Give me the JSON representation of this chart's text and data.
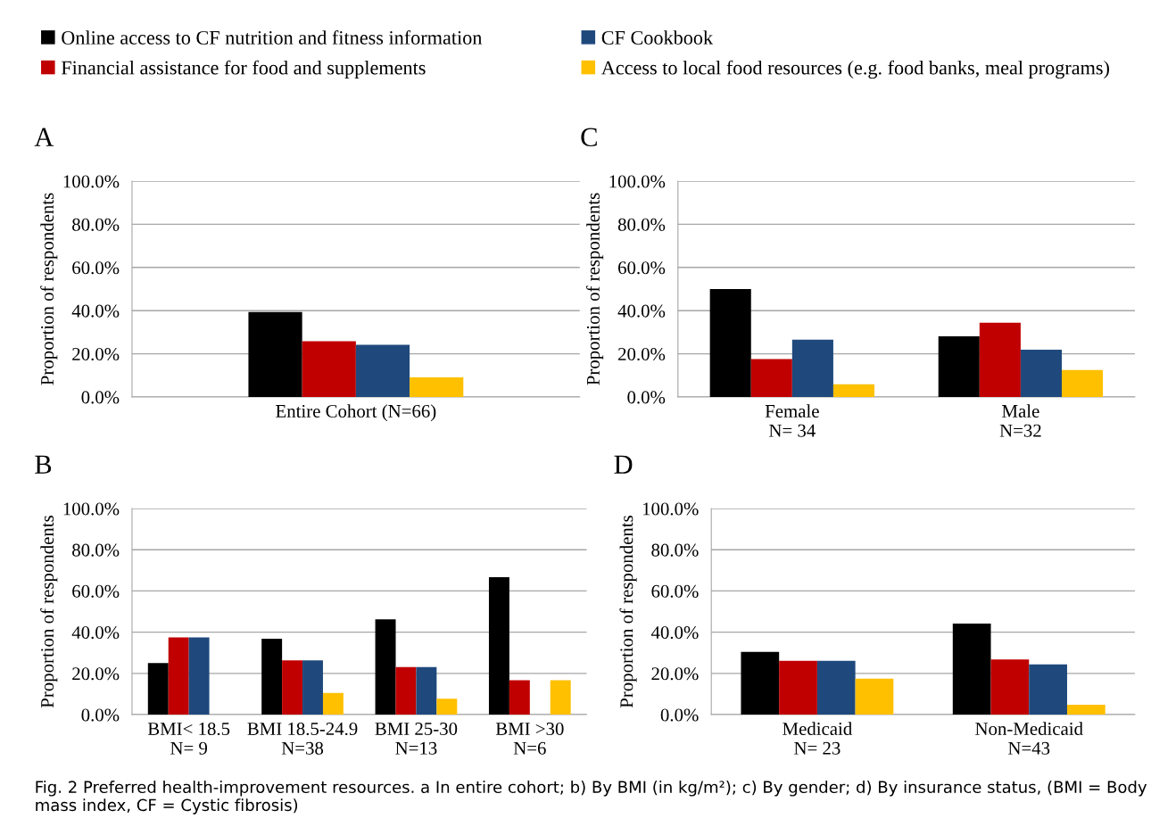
{
  "chart_data": [
    {
      "type": "bar",
      "title": "A",
      "ylabel": "Proportion of respondents",
      "categories": [
        "Entire Cohort (N=66)"
      ],
      "legend": "top",
      "series": [
        {
          "name": "Online access to CF nutrition and fitness information",
          "color": "#000000",
          "values": [
            39.4
          ]
        },
        {
          "name": "Financial assistance for food and supplements",
          "color": "#c00000",
          "values": [
            25.8
          ]
        },
        {
          "name": "CF Cookbook",
          "color": "#1f497d",
          "values": [
            24.2
          ]
        },
        {
          "name": "Access to local food resources (e.g. food banks, meal programs)",
          "color": "#ffc000",
          "values": [
            9.1
          ]
        }
      ],
      "ylim": [
        0,
        100
      ],
      "yticks": [
        {
          "value": 0,
          "label": "0.0%"
        },
        {
          "value": 20,
          "label": "20.0%"
        },
        {
          "value": 40,
          "label": "40.0%"
        },
        {
          "value": 60,
          "label": "60.0%"
        },
        {
          "value": 80,
          "label": "80.0%"
        },
        {
          "value": 100,
          "label": "100.0%"
        }
      ],
      "grid": "y"
    },
    {
      "type": "bar",
      "title": "C",
      "ylabel": "Proportion of respondents",
      "categories": [
        "Female\nN= 34",
        "Male\nN=32"
      ],
      "series": [
        {
          "color": "#000000",
          "values": [
            50.0,
            28.1
          ]
        },
        {
          "color": "#c00000",
          "values": [
            17.6,
            34.4
          ]
        },
        {
          "color": "#1f497d",
          "values": [
            26.5,
            21.9
          ]
        },
        {
          "color": "#ffc000",
          "values": [
            5.9,
            12.5
          ]
        }
      ],
      "ylim": [
        0,
        100
      ],
      "yticks": [
        {
          "value": 0,
          "label": "0.0%"
        },
        {
          "value": 20,
          "label": "20.0%"
        },
        {
          "value": 40,
          "label": "40.0%"
        },
        {
          "value": 60,
          "label": "60.0%"
        },
        {
          "value": 80,
          "label": "80.0%"
        },
        {
          "value": 100,
          "label": "100.0%"
        }
      ],
      "grid": "y"
    },
    {
      "type": "bar",
      "title": "B",
      "ylabel": "Proportion of respondents",
      "categories": [
        "BMI< 18.5\nN= 9",
        "BMI 18.5-24.9\nN=38",
        "BMI 25-30\nN=13",
        "BMI >30\nN=6"
      ],
      "series": [
        {
          "color": "#000000",
          "values": [
            25.0,
            36.8,
            46.2,
            66.7
          ]
        },
        {
          "color": "#c00000",
          "values": [
            37.5,
            26.3,
            23.1,
            16.7
          ]
        },
        {
          "color": "#1f497d",
          "values": [
            37.5,
            26.3,
            23.1,
            0
          ]
        },
        {
          "color": "#ffc000",
          "values": [
            0,
            10.5,
            7.7,
            16.7
          ]
        }
      ],
      "ylim": [
        0,
        100
      ],
      "yticks": [
        {
          "value": 0,
          "label": "0.0%"
        },
        {
          "value": 20,
          "label": "20.0%"
        },
        {
          "value": 40,
          "label": "40.0%"
        },
        {
          "value": 60,
          "label": "60.0%"
        },
        {
          "value": 80,
          "label": "80.0%"
        },
        {
          "value": 100,
          "label": "100.0%"
        }
      ],
      "grid": "y"
    },
    {
      "type": "bar",
      "title": "D",
      "ylabel": "Proportion of respondents",
      "categories": [
        "Medicaid\nN= 23",
        "Non-Medicaid\nN=43"
      ],
      "series": [
        {
          "color": "#000000",
          "values": [
            30.4,
            44.2
          ]
        },
        {
          "color": "#c00000",
          "values": [
            26.1,
            26.7
          ]
        },
        {
          "color": "#1f497d",
          "values": [
            26.1,
            24.4
          ]
        },
        {
          "color": "#ffc000",
          "values": [
            17.4,
            4.8
          ]
        }
      ],
      "ylim": [
        0,
        100
      ],
      "yticks": [
        {
          "value": 0,
          "label": "0.0%"
        },
        {
          "value": 20,
          "label": "20.0%"
        },
        {
          "value": 40,
          "label": "40.0%"
        },
        {
          "value": 60,
          "label": "60.0%"
        },
        {
          "value": 80,
          "label": "80.0%"
        },
        {
          "value": 100,
          "label": "100.0%"
        }
      ],
      "grid": "y",
      "annotations": [
        "Fig. 2 Preferred health-improvement resources. a In entire cohort; b) By BMI (in kg/m²); c) By gender; d) By insurance status, (BMI = Body mass index, CF = Cystic fibrosis)"
      ]
    }
  ]
}
